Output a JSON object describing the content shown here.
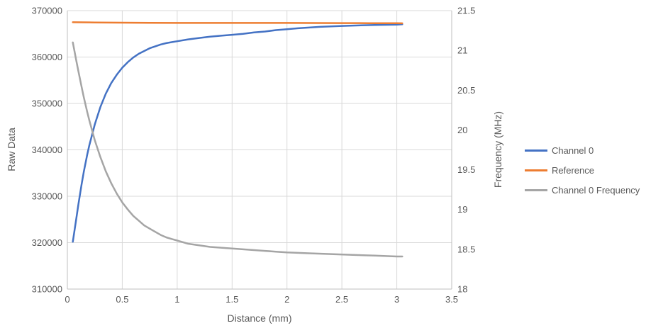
{
  "colors": {
    "text": "#595959",
    "gridline": "#D9D9D9",
    "axis_line": "#BFBFBF",
    "background": "#FFFFFF"
  },
  "chart_data": {
    "type": "line",
    "title": "",
    "xlabel": "Distance (mm)",
    "ylabel_left": "Raw Data",
    "ylabel_right": "Frequency (MHz)",
    "xlim": [
      0,
      3.5
    ],
    "ylim_left": [
      310000,
      370000
    ],
    "ylim_right": [
      18,
      21.5
    ],
    "grid": true,
    "legend_position": "right",
    "x_tick_values": [
      0,
      0.5,
      1,
      1.5,
      2,
      2.5,
      3,
      3.5
    ],
    "x_tick_labels": [
      "0",
      "0.5",
      "1",
      "1.5",
      "2",
      "2.5",
      "3",
      "3.5"
    ],
    "y_left_tick_values": [
      310000,
      320000,
      330000,
      340000,
      350000,
      360000,
      370000
    ],
    "y_left_tick_labels": [
      "310000",
      "320000",
      "330000",
      "340000",
      "350000",
      "360000",
      "370000"
    ],
    "y_right_tick_values": [
      18,
      18.5,
      19,
      19.5,
      20,
      20.5,
      21,
      21.5
    ],
    "y_right_tick_labels": [
      "18",
      "18.5",
      "19",
      "19.5",
      "20",
      "20.5",
      "21",
      "21.5"
    ],
    "series": [
      {
        "name": "Channel 0",
        "axis": "left",
        "color": "#4472C4",
        "x": [
          0.05,
          0.08,
          0.1,
          0.13,
          0.15,
          0.18,
          0.2,
          0.25,
          0.3,
          0.35,
          0.4,
          0.45,
          0.5,
          0.55,
          0.6,
          0.65,
          0.7,
          0.75,
          0.8,
          0.85,
          0.9,
          0.95,
          1.0,
          1.1,
          1.2,
          1.3,
          1.4,
          1.5,
          1.6,
          1.7,
          1.8,
          1.9,
          2.0,
          2.1,
          2.2,
          2.3,
          2.4,
          2.5,
          2.6,
          2.7,
          2.8,
          2.9,
          3.0,
          3.05
        ],
        "y": [
          320200,
          325000,
          328200,
          332600,
          335300,
          338900,
          341000,
          345500,
          349200,
          352100,
          354400,
          356200,
          357700,
          358900,
          359900,
          360700,
          361300,
          361900,
          362300,
          362700,
          363000,
          363200,
          363400,
          363800,
          364100,
          364400,
          364600,
          364800,
          365000,
          365300,
          365500,
          365800,
          366000,
          366200,
          366350,
          366500,
          366600,
          366700,
          366780,
          366850,
          366900,
          366950,
          367000,
          367050
        ]
      },
      {
        "name": "Reference",
        "axis": "left",
        "color": "#ED7D31",
        "x": [
          0.05,
          0.25,
          0.5,
          0.75,
          1.0,
          1.25,
          1.5,
          1.75,
          2.0,
          2.25,
          2.5,
          2.75,
          3.0,
          3.05
        ],
        "y": [
          367500,
          367450,
          367400,
          367380,
          367350,
          367350,
          367350,
          367350,
          367350,
          367330,
          367320,
          367300,
          367280,
          367270
        ]
      },
      {
        "name": "Channel 0 Frequency",
        "axis": "right",
        "color": "#A5A5A5",
        "x": [
          0.05,
          0.08,
          0.1,
          0.13,
          0.15,
          0.18,
          0.2,
          0.25,
          0.3,
          0.35,
          0.4,
          0.45,
          0.5,
          0.55,
          0.6,
          0.65,
          0.7,
          0.75,
          0.8,
          0.85,
          0.9,
          0.95,
          1.0,
          1.1,
          1.2,
          1.3,
          1.4,
          1.5,
          1.6,
          1.7,
          1.8,
          1.9,
          2.0,
          2.2,
          2.4,
          2.6,
          2.8,
          3.0,
          3.05
        ],
        "y": [
          21.1,
          20.88,
          20.74,
          20.54,
          20.41,
          20.23,
          20.12,
          19.87,
          19.66,
          19.48,
          19.33,
          19.2,
          19.09,
          19.0,
          18.92,
          18.86,
          18.8,
          18.76,
          18.72,
          18.68,
          18.65,
          18.63,
          18.61,
          18.57,
          18.55,
          18.53,
          18.52,
          18.51,
          18.5,
          18.49,
          18.48,
          18.47,
          18.46,
          18.45,
          18.44,
          18.43,
          18.42,
          18.41,
          18.41
        ]
      }
    ]
  }
}
